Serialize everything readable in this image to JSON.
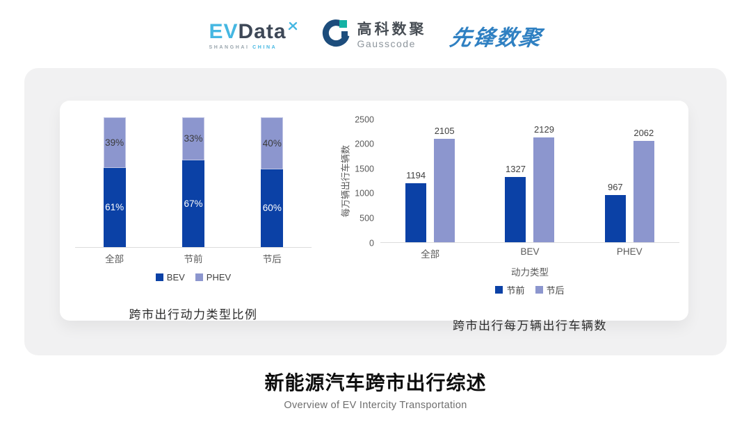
{
  "logos": {
    "evdata": {
      "ev": "EV",
      "data": "Data",
      "sub_left": "SHANGHAI",
      "sub_right": "CHINA"
    },
    "gausscode": {
      "name_cn": "高科数聚",
      "name_en": "Gausscode"
    },
    "pioneer": {
      "name": "先锋数聚"
    }
  },
  "colors": {
    "bev_dark_blue": "#0B41A6",
    "phev_light_purple": "#8C96CE",
    "axis_line": "#DCDCDC",
    "tick_text": "#595959",
    "card_gray": "#F1F1F2"
  },
  "chart_data": [
    {
      "type": "bar",
      "subtype": "stacked-100-percent",
      "title": "跨市出行动力类型比例",
      "categories": [
        "全部",
        "节前",
        "节后"
      ],
      "series": [
        {
          "name": "BEV",
          "color": "#0B41A6",
          "values": [
            61,
            67,
            60
          ],
          "unit": "%",
          "label_color": "#ffffff"
        },
        {
          "name": "PHEV",
          "color": "#8C96CE",
          "values": [
            39,
            33,
            40
          ],
          "unit": "%",
          "label_color": "#3a3a3a"
        }
      ],
      "legend_position": "bottom",
      "grid": false
    },
    {
      "type": "bar",
      "subtype": "grouped",
      "title": "跨市出行每万辆出行车辆数",
      "categories": [
        "全部",
        "BEV",
        "PHEV"
      ],
      "series": [
        {
          "name": "节前",
          "color": "#0B41A6",
          "values": [
            1194,
            1327,
            967
          ]
        },
        {
          "name": "节后",
          "color": "#8C96CE",
          "values": [
            2105,
            2129,
            2062
          ]
        }
      ],
      "xlabel": "动力类型",
      "ylabel": "每万辆出行车辆数",
      "ylim": [
        0,
        2500
      ],
      "yticks": [
        0,
        500,
        1000,
        1500,
        2000,
        2500
      ],
      "legend_position": "bottom",
      "grid": false
    }
  ],
  "footer": {
    "title": "新能源汽车跨市出行综述",
    "subtitle": "Overview of EV Intercity Transportation"
  }
}
